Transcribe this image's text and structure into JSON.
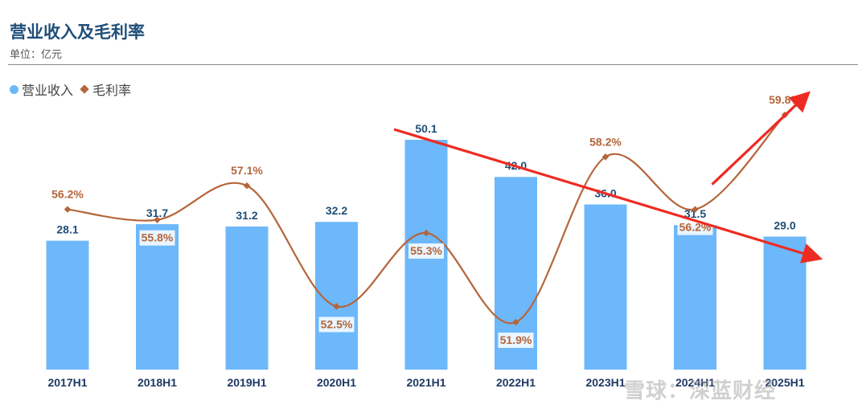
{
  "header": {
    "title": "营业收入及毛利率",
    "unit": "单位：亿元"
  },
  "legend": {
    "revenue": "营业收入",
    "margin": "毛利率"
  },
  "watermark": "雪球：深蓝财经",
  "colors": {
    "bar": "#6cb8fb",
    "line": "#b5653a",
    "arrow": "#ee2b23"
  },
  "chart_data": {
    "type": "bar",
    "title": "营业收入及毛利率",
    "categories": [
      "2017H1",
      "2018H1",
      "2019H1",
      "2020H1",
      "2021H1",
      "2022H1",
      "2023H1",
      "2024H1",
      "2025H1"
    ],
    "series": [
      {
        "name": "营业收入",
        "type": "bar",
        "values": [
          28.1,
          31.7,
          31.2,
          32.2,
          50.1,
          42.0,
          36.0,
          31.5,
          29.0
        ]
      },
      {
        "name": "毛利率",
        "type": "line",
        "values": [
          56.2,
          55.8,
          57.1,
          52.5,
          55.3,
          51.9,
          58.2,
          56.2,
          59.8
        ],
        "labels": [
          "56.2%",
          "55.8%",
          "57.1%",
          "52.5%",
          "55.3%",
          "51.9%",
          "58.2%",
          "56.2%",
          "59.8%"
        ]
      }
    ],
    "bar_labels": [
      "28.1",
      "31.7",
      "31.2",
      "32.2",
      "50.1",
      "42.0",
      "36.0",
      "31.5",
      "29.0"
    ],
    "legend_position": "top-left",
    "grid": false,
    "annotations": [
      "downward red arrow from 2021H1 to beyond 2025H1",
      "upward red arrow from 2024H1 to beyond 2025H1"
    ]
  }
}
